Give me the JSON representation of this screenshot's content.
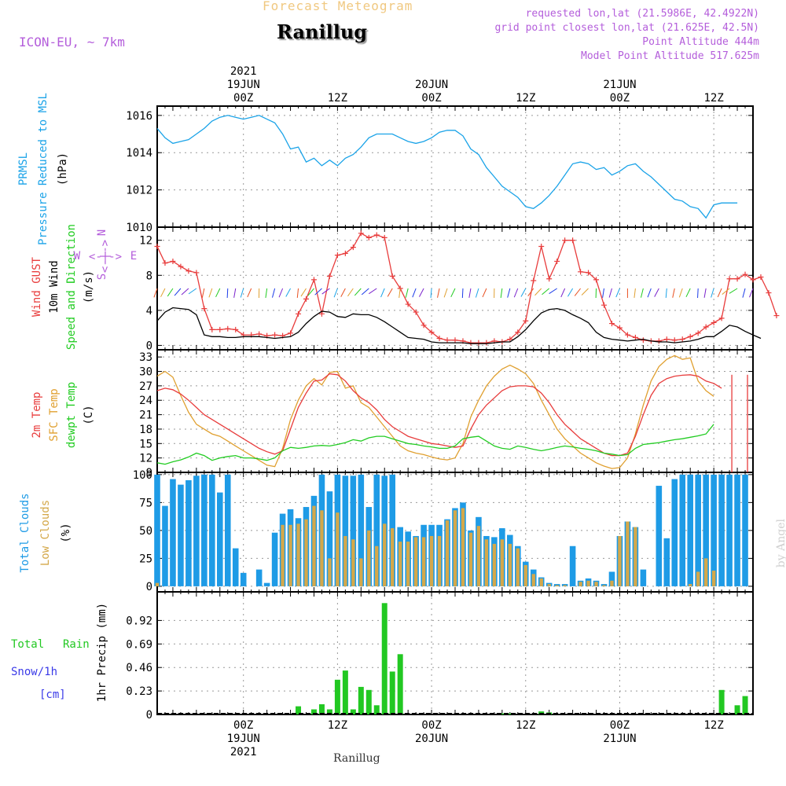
{
  "header": {
    "forecast_title": "Forecast Meteogram",
    "station": "Ranillug",
    "model": "ICON-EU, ~ 7km",
    "requested": "requested lon,lat (21.5986E, 42.4922N)",
    "grid_point": "grid point closest lon,lat (21.625E, 42.5N)",
    "point_alt": "Point Altitude 444m",
    "model_alt": "Model Point Altitude 517.625m",
    "footer_station": "Ranillug",
    "credit": "by Angel"
  },
  "time_axis": {
    "top_labels": [
      {
        "lines": [
          "2021",
          "19JUN",
          "00Z"
        ],
        "hour": 15
      },
      {
        "lines": [
          "12Z"
        ],
        "hour": 27
      },
      {
        "lines": [
          "20JUN",
          "00Z"
        ],
        "hour": 39
      },
      {
        "lines": [
          "12Z"
        ],
        "hour": 51
      },
      {
        "lines": [
          "21JUN",
          "00Z"
        ],
        "hour": 63
      },
      {
        "lines": [
          "12Z"
        ],
        "hour": 75
      }
    ],
    "bottom_labels": [
      {
        "lines": [
          "00Z",
          "19JUN",
          "2021"
        ],
        "hour": 15
      },
      {
        "lines": [
          "12Z"
        ],
        "hour": 27
      },
      {
        "lines": [
          "00Z",
          "20JUN"
        ],
        "hour": 39
      },
      {
        "lines": [
          "12Z"
        ],
        "hour": 51
      },
      {
        "lines": [
          "00Z",
          "21JUN"
        ],
        "hour": 63
      },
      {
        "lines": [
          "12Z"
        ],
        "hour": 75
      }
    ],
    "hour_range": [
      4,
      80
    ]
  },
  "colors": {
    "pressure": "#1aa3e8",
    "gust": "#e83c3c",
    "wind": "#000000",
    "temp2m": "#e83c3c",
    "sfc": "#e0a030",
    "dewpt": "#22cc22",
    "total_cloud": "#1e9be6",
    "low_cloud": "#d4a84a",
    "rain": "#22c822",
    "snow": "#3a3ae8",
    "compass": "#b45edb"
  },
  "panel_labels": {
    "pressure": [
      {
        "text": "PRMSL",
        "color": "#1aa3e8"
      },
      {
        "text": "Pressure Reduced to MSL",
        "color": "#1aa3e8"
      },
      {
        "text": "(hPa)",
        "color": "#000000"
      }
    ],
    "wind": [
      {
        "text": "Wind GUST",
        "color": "#e83c3c"
      },
      {
        "text": "10m Wind",
        "color": "#000000"
      },
      {
        "text": "Speed and Direction",
        "color": "#22cc22"
      },
      {
        "text": "(m/s)",
        "color": "#000000"
      }
    ],
    "temp": [
      {
        "text": "2m Temp",
        "color": "#e83c3c"
      },
      {
        "text": "SFC Temp",
        "color": "#e0a030"
      },
      {
        "text": "dewpt Temp",
        "color": "#22cc22"
      },
      {
        "text": "(C)",
        "color": "#000000"
      }
    ],
    "cloud": [
      {
        "text": "Total Clouds",
        "color": "#1e9be6"
      },
      {
        "text": "Low Clouds",
        "color": "#d4a84a"
      },
      {
        "text": "(%)",
        "color": "#000000"
      }
    ],
    "precip_axis": "1hr Precip (mm)",
    "precip_legend": {
      "total": "Total",
      "rain": "Rain",
      "snow": "Snow/1h",
      "cm": "[cm]"
    },
    "compass": {
      "n": "N",
      "s": "S",
      "w": "W",
      "e": "E",
      "arrow": "<-|->"
    }
  },
  "chart_data": [
    {
      "type": "line",
      "title": "PRMSL Pressure Reduced to MSL",
      "ylabel": "(hPa)",
      "ylim": [
        1010,
        1016.5
      ],
      "yticks": [
        1010,
        1012,
        1014,
        1016
      ],
      "x_start": 4,
      "series": [
        {
          "name": "PRMSL",
          "values": [
            1015.3,
            1014.8,
            1014.5,
            1014.6,
            1014.7,
            1015.0,
            1015.3,
            1015.7,
            1015.9,
            1016.0,
            1015.9,
            1015.8,
            1015.9,
            1016.0,
            1015.8,
            1015.6,
            1015.0,
            1014.2,
            1014.3,
            1013.5,
            1013.7,
            1013.3,
            1013.6,
            1013.3,
            1013.7,
            1013.9,
            1014.3,
            1014.8,
            1015.0,
            1015.0,
            1015.0,
            1014.8,
            1014.6,
            1014.5,
            1014.6,
            1014.8,
            1015.1,
            1015.2,
            1015.2,
            1014.9,
            1014.2,
            1013.9,
            1013.2,
            1012.7,
            1012.2,
            1011.9,
            1011.6,
            1011.1,
            1011.0,
            1011.3,
            1011.7,
            1012.2,
            1012.8,
            1013.4,
            1013.5,
            1013.4,
            1013.1,
            1013.2,
            1012.8,
            1013.0,
            1013.3,
            1013.4,
            1013.0,
            1012.7,
            1012.3,
            1011.9,
            1011.5,
            1011.4,
            1011.1,
            1011.0,
            1010.5,
            1011.2,
            1011.3,
            1011.3,
            1011.3
          ]
        }
      ]
    },
    {
      "type": "line",
      "title": "Wind GUST / 10m Wind",
      "ylabel": "(m/s)",
      "ylim": [
        -0.5,
        13.5
      ],
      "yticks": [
        0,
        4,
        8,
        12
      ],
      "x_start": 4,
      "series": [
        {
          "name": "Wind GUST",
          "values": [
            11.3,
            9.4,
            9.6,
            9.0,
            8.5,
            8.3,
            4.2,
            1.8,
            1.8,
            1.9,
            1.8,
            1.2,
            1.2,
            1.3,
            1.1,
            1.2,
            1.1,
            1.4,
            3.6,
            5.3,
            7.5,
            3.6,
            7.9,
            10.3,
            10.5,
            11.2,
            12.8,
            12.3,
            12.6,
            12.3,
            7.9,
            6.5,
            4.7,
            3.8,
            2.3,
            1.5,
            0.8,
            0.6,
            0.6,
            0.5,
            0.3,
            0.3,
            0.3,
            0.5,
            0.4,
            0.7,
            1.5,
            2.8,
            7.4,
            11.3,
            7.6,
            9.6,
            12.0,
            12.0,
            8.4,
            8.3,
            7.5,
            4.6,
            2.5,
            2.0,
            1.2,
            0.9,
            0.6,
            0.5,
            0.5,
            0.7,
            0.6,
            0.7,
            1.0,
            1.4,
            2.1,
            2.6,
            3.1,
            7.6,
            7.6,
            8.1,
            7.5,
            7.8,
            6.0,
            3.4
          ]
        },
        {
          "name": "10m Wind",
          "values": [
            2.8,
            3.8,
            4.3,
            4.2,
            4.1,
            3.5,
            1.2,
            1.0,
            1.0,
            0.9,
            0.9,
            1.0,
            1.0,
            1.0,
            0.9,
            0.8,
            0.9,
            1.0,
            1.5,
            2.5,
            3.3,
            3.9,
            3.8,
            3.3,
            3.2,
            3.6,
            3.5,
            3.5,
            3.2,
            2.7,
            2.1,
            1.5,
            0.9,
            0.8,
            0.7,
            0.4,
            0.3,
            0.3,
            0.3,
            0.3,
            0.2,
            0.2,
            0.2,
            0.3,
            0.4,
            0.4,
            1.0,
            1.8,
            2.8,
            3.7,
            4.1,
            4.2,
            4.0,
            3.5,
            3.1,
            2.6,
            1.5,
            0.9,
            0.7,
            0.6,
            0.5,
            0.6,
            0.7,
            0.5,
            0.4,
            0.4,
            0.3,
            0.4,
            0.5,
            0.7,
            1.0,
            1.0,
            1.6,
            2.3,
            2.1,
            1.6,
            1.2,
            0.8
          ]
        }
      ]
    },
    {
      "type": "line",
      "title": "2m Temp / SFC Temp / dewpt Temp",
      "ylabel": "(C)",
      "ylim": [
        9,
        34.5
      ],
      "yticks": [
        9,
        12,
        15,
        18,
        21,
        24,
        27,
        30,
        33
      ],
      "x_start": 4,
      "series": [
        {
          "name": "2m Temp",
          "values": [
            26.0,
            26.5,
            26.2,
            25.3,
            24.0,
            22.5,
            21.0,
            20.0,
            19.0,
            18.0,
            17.0,
            16.0,
            15.0,
            14.0,
            13.3,
            12.8,
            13.5,
            18.0,
            22.5,
            25.5,
            28.0,
            28.2,
            29.5,
            29.3,
            28.0,
            26.0,
            24.5,
            23.5,
            22.0,
            20.0,
            18.5,
            17.5,
            16.5,
            16.0,
            15.5,
            15.0,
            14.8,
            14.5,
            14.2,
            14.5,
            18.0,
            21.0,
            23.0,
            24.5,
            26.0,
            26.8,
            27.0,
            27.0,
            26.8,
            25.5,
            23.5,
            21.0,
            19.0,
            17.5,
            16.0,
            15.0,
            14.0,
            13.0,
            12.5,
            12.5,
            13.0,
            16.5,
            21.0,
            25.0,
            27.5,
            28.5,
            29.0,
            29.2,
            29.3,
            29.0,
            28.0,
            27.5,
            26.5
          ]
        },
        {
          "name": "SFC Temp",
          "values": [
            29.0,
            30.0,
            28.8,
            25.0,
            21.5,
            19.0,
            18.0,
            17.0,
            16.5,
            15.5,
            14.5,
            13.5,
            12.5,
            11.5,
            10.5,
            10.2,
            14.0,
            20.0,
            24.0,
            27.0,
            28.5,
            27.2,
            29.8,
            30.0,
            26.5,
            27.0,
            23.5,
            22.5,
            20.5,
            18.5,
            16.5,
            14.5,
            13.5,
            13.0,
            12.7,
            12.2,
            11.8,
            11.6,
            12.0,
            15.0,
            20.5,
            24.0,
            27.0,
            29.0,
            30.5,
            31.3,
            30.5,
            29.5,
            27.5,
            24.0,
            21.0,
            18.0,
            16.0,
            14.5,
            13.0,
            12.0,
            11.0,
            10.3,
            9.8,
            10.0,
            12.0,
            17.0,
            23.0,
            28.0,
            31.0,
            32.5,
            33.3,
            32.5,
            32.8,
            28.0,
            26.0,
            24.8
          ]
        },
        {
          "name": "dewpt Temp",
          "values": [
            11.0,
            10.7,
            11.2,
            11.6,
            12.2,
            13.0,
            12.5,
            11.5,
            12.0,
            12.3,
            12.5,
            12.0,
            12.0,
            11.8,
            11.5,
            12.0,
            13.5,
            14.2,
            14.0,
            14.2,
            14.5,
            14.6,
            14.5,
            14.8,
            15.2,
            15.8,
            15.5,
            16.2,
            16.5,
            16.5,
            16.0,
            15.5,
            15.0,
            14.8,
            14.5,
            14.3,
            14.0,
            14.0,
            14.5,
            16.0,
            16.3,
            16.5,
            15.5,
            14.5,
            14.0,
            13.8,
            14.5,
            14.2,
            13.8,
            13.5,
            13.8,
            14.2,
            14.5,
            14.3,
            14.0,
            13.8,
            13.5,
            13.0,
            12.8,
            12.5,
            12.7,
            14.0,
            14.8,
            15.0,
            15.2,
            15.5,
            15.8,
            16.0,
            16.3,
            16.6,
            17.0,
            19.0
          ]
        }
      ],
      "annotations": [
        {
          "series": "2m Temp",
          "hour": 77.3,
          "drop_to": 9
        },
        {
          "series": "2m Temp",
          "hour": 79.3,
          "drop_to": 9
        }
      ]
    },
    {
      "type": "bar",
      "title": "Total Clouds / Low Clouds",
      "ylabel": "(%)",
      "ylim": [
        -5,
        102
      ],
      "yticks": [
        0,
        25,
        50,
        75,
        100
      ],
      "x_start": 4,
      "series": [
        {
          "name": "Total Clouds",
          "values": [
            100,
            72,
            96,
            91,
            95,
            99,
            100,
            100,
            84,
            100,
            34,
            12,
            0,
            15,
            3,
            48,
            65,
            69,
            61,
            71,
            81,
            100,
            85,
            100,
            99,
            99,
            100,
            71,
            100,
            99,
            100,
            53,
            49,
            45,
            55,
            55,
            55,
            60,
            70,
            75,
            50,
            62,
            45,
            44,
            52,
            46,
            36,
            22,
            15,
            8,
            3,
            2,
            2,
            36,
            5,
            7,
            5,
            2,
            13,
            45,
            58,
            53,
            15,
            0,
            90,
            43,
            96,
            100,
            100,
            100,
            100,
            100,
            100,
            100,
            100,
            100
          ]
        },
        {
          "name": "Low Clouds",
          "values": [
            3,
            0,
            0,
            0,
            0,
            0,
            0,
            0,
            0,
            0,
            0,
            0,
            0,
            0,
            0,
            0,
            55,
            55,
            56,
            60,
            72,
            68,
            25,
            66,
            45,
            42,
            25,
            50,
            36,
            56,
            52,
            40,
            40,
            44,
            44,
            45,
            45,
            59,
            68,
            70,
            48,
            54,
            42,
            38,
            42,
            38,
            34,
            19,
            11,
            7,
            2,
            1,
            1,
            0,
            4,
            5,
            4,
            1,
            5,
            45,
            58,
            53,
            0,
            0,
            0,
            0,
            0,
            0,
            2,
            13,
            25,
            14,
            0,
            0,
            0,
            0
          ]
        }
      ]
    },
    {
      "type": "bar",
      "title": "1hr Precip",
      "ylabel": "1hr Precip (mm)",
      "ylim": [
        0,
        1.2
      ],
      "yticks": [
        0,
        0.23,
        0.46,
        0.69,
        0.92
      ],
      "x_start": 4,
      "series": [
        {
          "name": "Total Rain",
          "values": [
            0,
            0,
            0,
            0,
            0,
            0,
            0,
            0,
            0,
            0,
            0,
            0,
            0,
            0,
            0,
            0,
            0,
            0,
            0.08,
            0,
            0.05,
            0.1,
            0.05,
            0.34,
            0.43,
            0.05,
            0.27,
            0.24,
            0.09,
            1.09,
            0.42,
            0.59,
            0,
            0,
            0,
            0,
            0,
            0,
            0,
            0,
            0,
            0,
            0,
            0,
            0.01,
            0.01,
            0,
            0,
            0,
            0.03,
            0.02,
            0,
            0,
            0,
            0,
            0,
            0,
            0,
            0,
            0,
            0,
            0,
            0,
            0,
            0,
            0,
            0,
            0,
            0,
            0,
            0,
            0,
            0.24,
            0,
            0.09,
            0.18
          ]
        },
        {
          "name": "Snow/1h",
          "values": []
        }
      ]
    }
  ]
}
